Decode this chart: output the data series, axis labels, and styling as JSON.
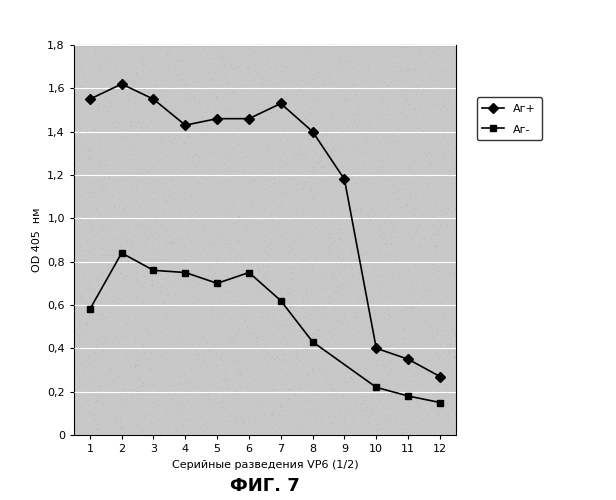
{
  "x": [
    1,
    2,
    3,
    4,
    5,
    6,
    7,
    8,
    9,
    10,
    11,
    12
  ],
  "ag_plus": [
    1.55,
    1.62,
    1.55,
    1.43,
    1.46,
    1.46,
    1.53,
    1.4,
    1.18,
    0.4,
    0.35,
    0.27
  ],
  "ag_minus": [
    0.58,
    0.84,
    0.76,
    0.75,
    0.7,
    0.75,
    0.62,
    0.43,
    null,
    0.22,
    0.18,
    0.15
  ],
  "xlabel": "Серийные разведения VP6 (1/2)",
  "ylabel": "OD 405  нм",
  "ylim": [
    0,
    1.8
  ],
  "xlim": [
    0.5,
    12.5
  ],
  "yticks": [
    0,
    0.2,
    0.4,
    0.6,
    0.8,
    1.0,
    1.2,
    1.4,
    1.6,
    1.8
  ],
  "xticks": [
    1,
    2,
    3,
    4,
    5,
    6,
    7,
    8,
    9,
    10,
    11,
    12
  ],
  "legend_ag_plus": "Аг+",
  "legend_ag_minus": "Аг-",
  "caption": "ФИГ. 7",
  "line_color": "#000000",
  "marker_plus": "D",
  "marker_minus": "s",
  "plot_bg_color": "#c8c8c8",
  "fig_bg_color": "#ffffff",
  "grid_color": "#ffffff",
  "noise_alpha": 0.35
}
